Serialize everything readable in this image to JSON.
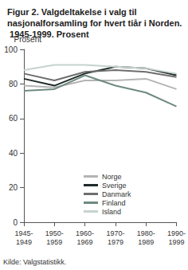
{
  "chart_data": {
    "type": "line",
    "title": "Figur 2. Valgdeltakelse i valg til nasjonalforsamling for hvert tiår i Norden. 1945-1999. Prosent",
    "y_label": "Prosent",
    "source": "Kilde: Valgstatistikk.",
    "categories": [
      "1945-1949",
      "1950-1959",
      "1960-1969",
      "1970-1979",
      "1980-1989",
      "1990-1999"
    ],
    "series": [
      {
        "name": "Norge",
        "color": "#b4b4b4",
        "values": [
          79,
          78,
          82,
          82,
          83,
          77
        ]
      },
      {
        "name": "Sverige",
        "color": "#1f2a2a",
        "values": [
          83,
          79,
          86,
          90,
          89,
          85
        ]
      },
      {
        "name": "Danmark",
        "color": "#6e6e6e",
        "values": [
          86,
          82,
          87,
          88,
          87,
          84
        ]
      },
      {
        "name": "Finland",
        "color": "#6f8a80",
        "values": [
          76,
          77,
          85,
          79,
          75,
          67
        ]
      },
      {
        "name": "Island",
        "color": "#c6d3cd",
        "values": [
          88,
          91,
          91,
          90,
          89,
          86
        ]
      }
    ],
    "ylim": [
      0,
      100
    ],
    "yticks": [
      0,
      20,
      40,
      60,
      80,
      100
    ],
    "grid": false,
    "legend": "bottom"
  }
}
